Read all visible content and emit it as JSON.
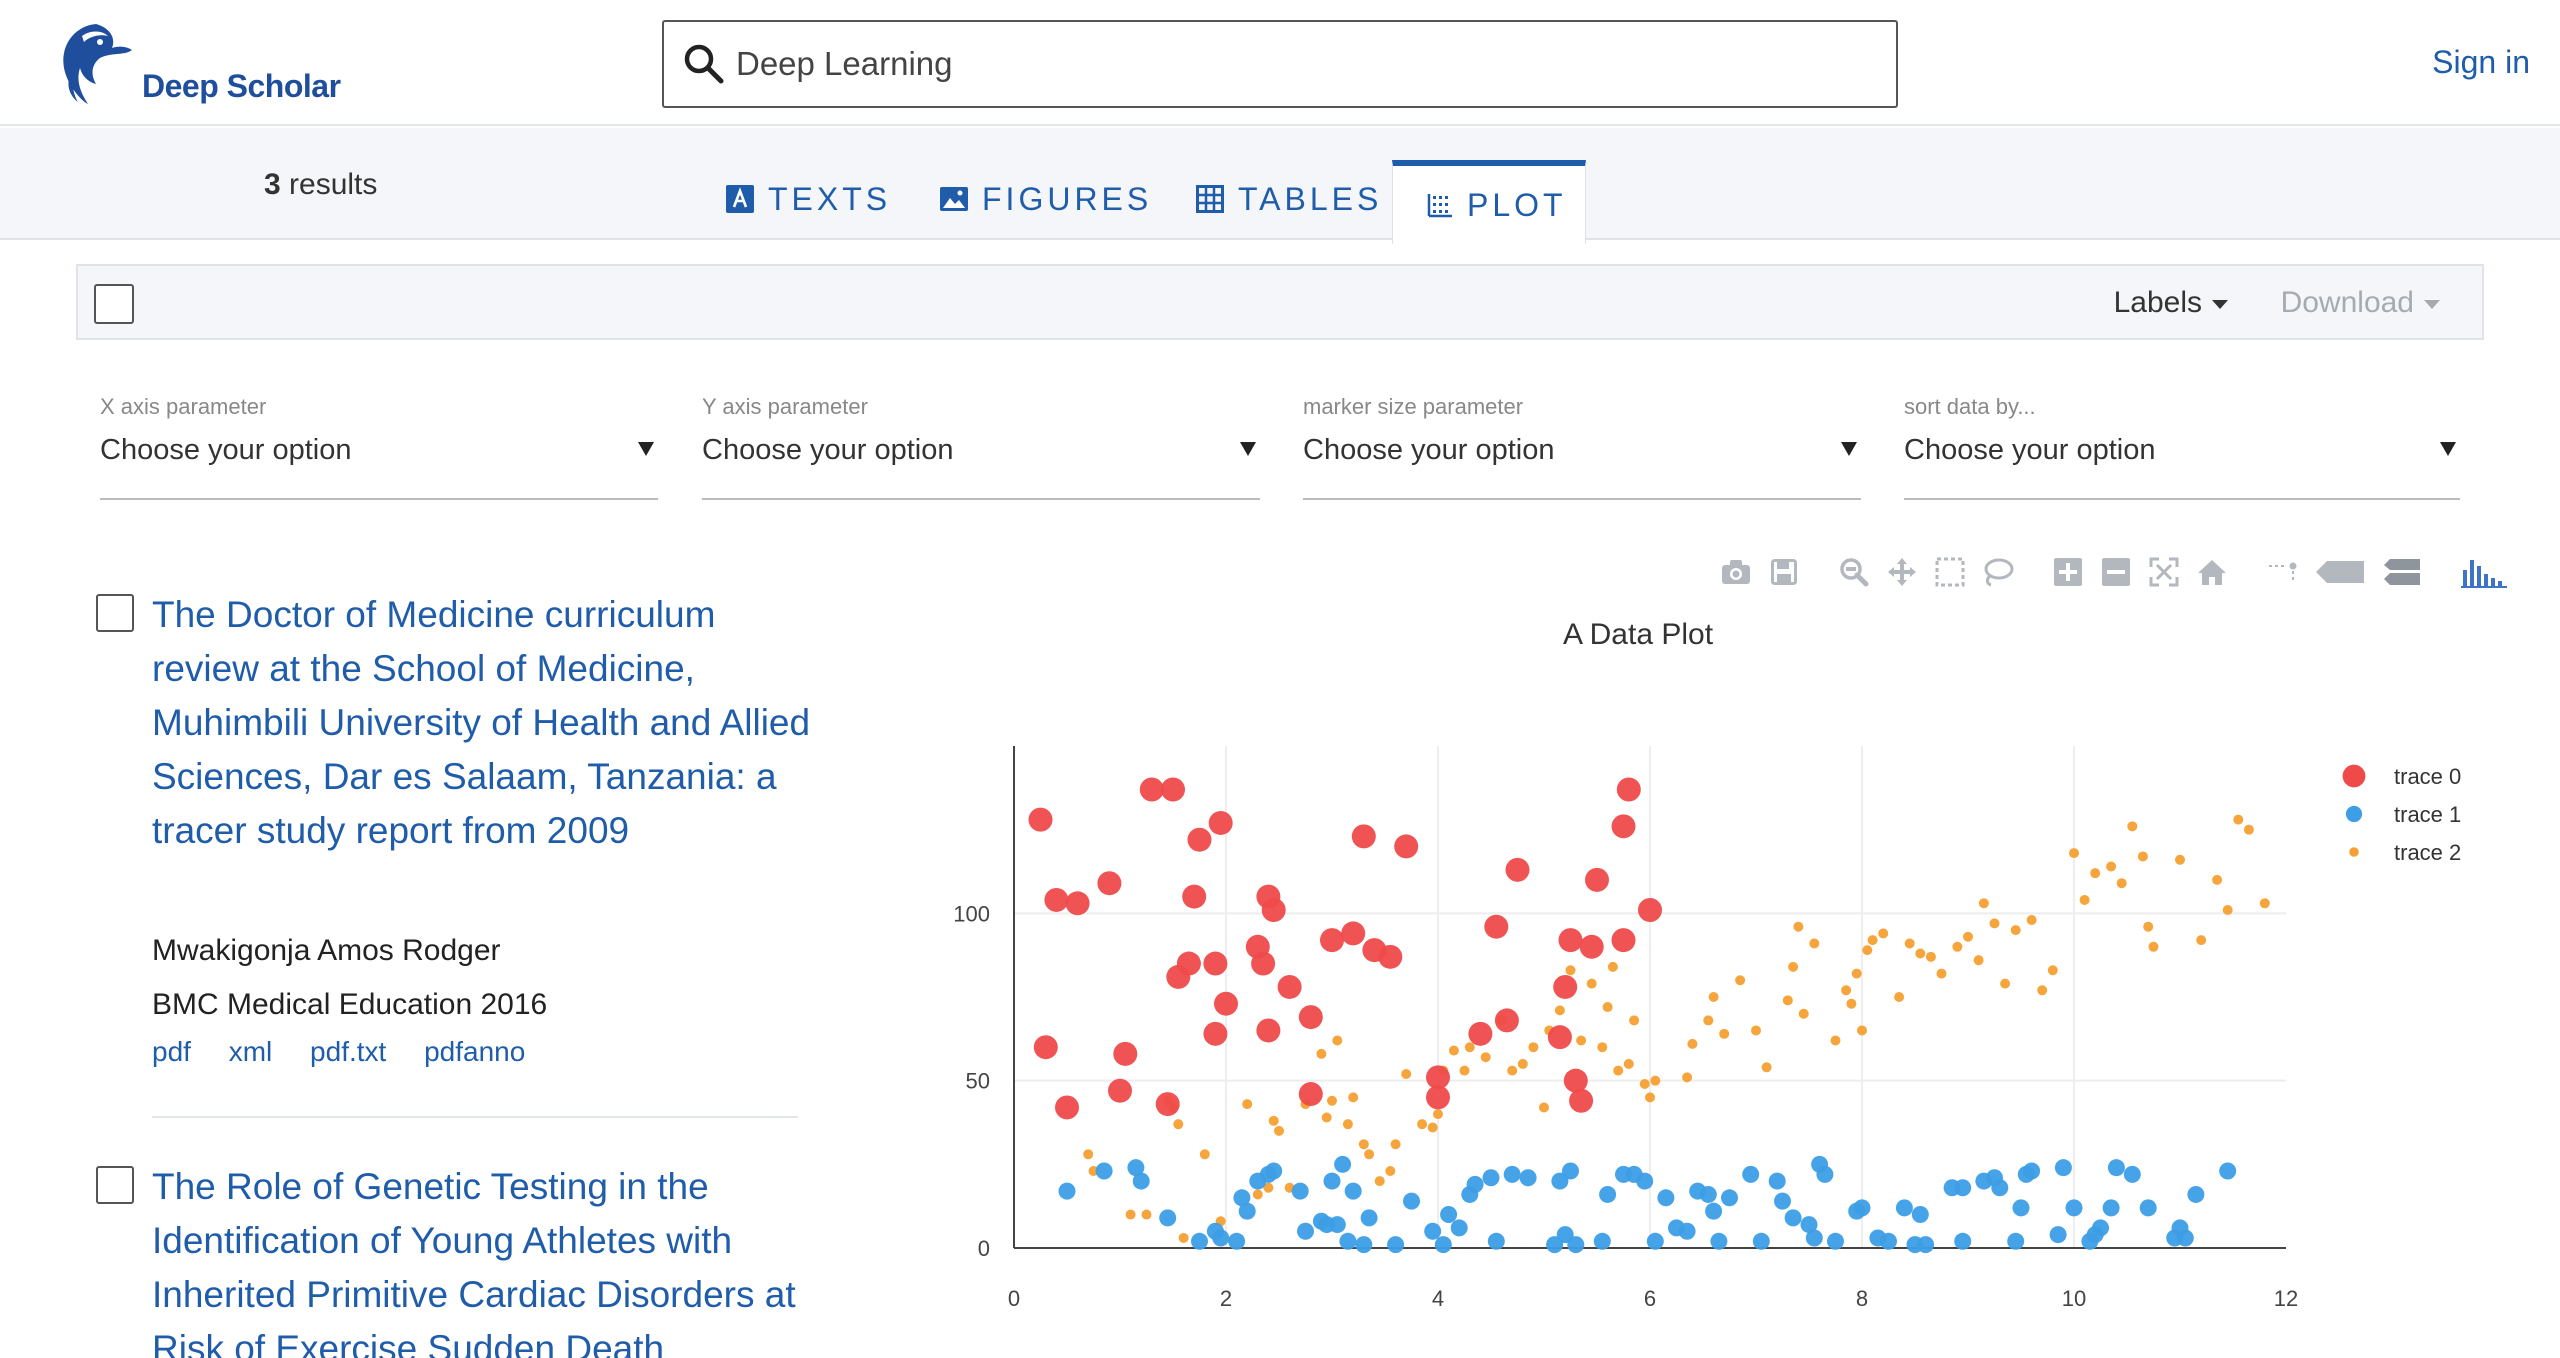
{
  "header": {
    "brand": "Deep Scholar",
    "search_value": "Deep Learning",
    "sign_in": "Sign in"
  },
  "tabs": {
    "result_count": "3",
    "result_label": "results",
    "items": [
      {
        "label": "TEXTS",
        "active": false
      },
      {
        "label": "FIGURES",
        "active": false
      },
      {
        "label": "TABLES",
        "active": false
      },
      {
        "label": "PLOT",
        "active": true
      }
    ]
  },
  "toolbar": {
    "labels": "Labels",
    "download": "Download"
  },
  "selectors": [
    {
      "label": "X axis parameter",
      "value": "Choose your option"
    },
    {
      "label": "Y axis parameter",
      "value": "Choose your option"
    },
    {
      "label": "marker size parameter",
      "value": "Choose your option"
    },
    {
      "label": "sort data by...",
      "value": "Choose your option"
    }
  ],
  "results": [
    {
      "title": "The Doctor of Medicine curriculum review at the School of Medicine, Muhimbili University of Health and Allied Sciences, Dar es Salaam, Tanzania: a tracer study report from 2009",
      "author": "Mwakigonja Amos Rodger",
      "venue": "BMC Medical Education 2016",
      "links": [
        "pdf",
        "xml",
        "pdf.txt",
        "pdfanno"
      ]
    },
    {
      "title": "The Role of Genetic Testing in the Identification of Young Athletes with Inherited Primitive Cardiac Disorders at Risk of Exercise Sudden Death"
    }
  ],
  "colors": {
    "accent": "#1f5ca9",
    "brand": "#1f4e9c",
    "trace0": "#ef4a4a",
    "trace1": "#3d9ee6",
    "trace2": "#f5a033"
  },
  "modebar_icons": [
    "camera-icon",
    "save-icon",
    "zoom-icon",
    "pan-icon",
    "box-select-icon",
    "lasso-icon",
    "zoom-in-icon",
    "zoom-out-icon",
    "autoscale-icon",
    "reset-axes-icon",
    "spike-lines-icon",
    "hover-closest-icon",
    "hover-compare-icon",
    "plotly-logo-icon"
  ],
  "chart_data": {
    "type": "scatter",
    "title": "A Data Plot",
    "xlim": [
      0,
      12
    ],
    "ylim": [
      0,
      150
    ],
    "x_ticks": [
      "0",
      "2",
      "4",
      "6",
      "8",
      "10",
      "12"
    ],
    "y_ticks": [
      "0",
      "50",
      "100"
    ],
    "grid": true,
    "legend_position": "top-right",
    "series": [
      {
        "name": "trace 0",
        "marker": "large",
        "points": [
          [
            0.25,
            128
          ],
          [
            0.3,
            60
          ],
          [
            0.4,
            104
          ],
          [
            0.5,
            42
          ],
          [
            0.6,
            103
          ],
          [
            0.9,
            109
          ],
          [
            1.0,
            47
          ],
          [
            1.05,
            58
          ],
          [
            1.3,
            137
          ],
          [
            1.45,
            43
          ],
          [
            1.5,
            137
          ],
          [
            1.55,
            81
          ],
          [
            1.65,
            85
          ],
          [
            1.7,
            105
          ],
          [
            1.75,
            122
          ],
          [
            1.9,
            64
          ],
          [
            1.9,
            85
          ],
          [
            1.95,
            127
          ],
          [
            2.0,
            73
          ],
          [
            2.3,
            90
          ],
          [
            2.35,
            85
          ],
          [
            2.4,
            105
          ],
          [
            2.4,
            65
          ],
          [
            2.45,
            101
          ],
          [
            2.6,
            78
          ],
          [
            2.8,
            69
          ],
          [
            2.8,
            46
          ],
          [
            3.0,
            92
          ],
          [
            3.2,
            94
          ],
          [
            3.3,
            123
          ],
          [
            3.4,
            89
          ],
          [
            3.55,
            87
          ],
          [
            3.7,
            120
          ],
          [
            4.0,
            45
          ],
          [
            4.0,
            51
          ],
          [
            4.4,
            64
          ],
          [
            4.55,
            96
          ],
          [
            4.65,
            68
          ],
          [
            4.75,
            113
          ],
          [
            5.15,
            63
          ],
          [
            5.2,
            78
          ],
          [
            5.25,
            92
          ],
          [
            5.3,
            50
          ],
          [
            5.35,
            44
          ],
          [
            5.45,
            90
          ],
          [
            5.5,
            110
          ],
          [
            5.75,
            92
          ],
          [
            5.75,
            126
          ],
          [
            5.8,
            137
          ],
          [
            6.0,
            101
          ]
        ]
      },
      {
        "name": "trace 1",
        "marker": "medium",
        "points": [
          [
            0.5,
            17
          ],
          [
            0.85,
            23
          ],
          [
            1.15,
            24
          ],
          [
            1.2,
            20
          ],
          [
            1.45,
            9
          ],
          [
            1.75,
            2
          ],
          [
            1.9,
            5
          ],
          [
            1.95,
            3
          ],
          [
            2.1,
            2
          ],
          [
            2.15,
            15
          ],
          [
            2.2,
            11
          ],
          [
            2.3,
            20
          ],
          [
            2.4,
            22
          ],
          [
            2.45,
            23
          ],
          [
            2.7,
            17
          ],
          [
            2.75,
            5
          ],
          [
            2.9,
            8
          ],
          [
            2.95,
            7
          ],
          [
            3.0,
            20
          ],
          [
            3.05,
            7
          ],
          [
            3.1,
            25
          ],
          [
            3.15,
            2
          ],
          [
            3.2,
            17
          ],
          [
            3.3,
            1
          ],
          [
            3.35,
            9
          ],
          [
            3.6,
            1
          ],
          [
            3.75,
            14
          ],
          [
            3.95,
            5
          ],
          [
            4.05,
            1
          ],
          [
            4.1,
            10
          ],
          [
            4.2,
            6
          ],
          [
            4.3,
            16
          ],
          [
            4.35,
            19
          ],
          [
            4.5,
            21
          ],
          [
            4.55,
            2
          ],
          [
            4.7,
            22
          ],
          [
            4.85,
            21
          ],
          [
            5.1,
            1
          ],
          [
            5.15,
            20
          ],
          [
            5.2,
            4
          ],
          [
            5.25,
            23
          ],
          [
            5.3,
            1
          ],
          [
            5.55,
            2
          ],
          [
            5.6,
            16
          ],
          [
            5.75,
            22
          ],
          [
            5.85,
            22
          ],
          [
            5.95,
            20
          ],
          [
            6.05,
            2
          ],
          [
            6.15,
            15
          ],
          [
            6.25,
            6
          ],
          [
            6.35,
            5
          ],
          [
            6.45,
            17
          ],
          [
            6.55,
            16
          ],
          [
            6.6,
            11
          ],
          [
            6.65,
            2
          ],
          [
            6.75,
            15
          ],
          [
            6.95,
            22
          ],
          [
            7.05,
            2
          ],
          [
            7.2,
            20
          ],
          [
            7.25,
            14
          ],
          [
            7.35,
            9
          ],
          [
            7.5,
            7
          ],
          [
            7.55,
            3
          ],
          [
            7.6,
            25
          ],
          [
            7.65,
            22
          ],
          [
            7.75,
            2
          ],
          [
            7.95,
            11
          ],
          [
            8.0,
            12
          ],
          [
            8.15,
            3
          ],
          [
            8.25,
            2
          ],
          [
            8.4,
            12
          ],
          [
            8.5,
            1
          ],
          [
            8.55,
            10
          ],
          [
            8.6,
            1
          ],
          [
            8.85,
            18
          ],
          [
            8.95,
            2
          ],
          [
            8.95,
            18
          ],
          [
            9.15,
            20
          ],
          [
            9.25,
            21
          ],
          [
            9.3,
            18
          ],
          [
            9.45,
            2
          ],
          [
            9.5,
            12
          ],
          [
            9.55,
            22
          ],
          [
            9.6,
            23
          ],
          [
            9.85,
            4
          ],
          [
            9.9,
            24
          ],
          [
            10.0,
            12
          ],
          [
            10.15,
            2
          ],
          [
            10.2,
            4
          ],
          [
            10.25,
            6
          ],
          [
            10.35,
            12
          ],
          [
            10.4,
            24
          ],
          [
            10.55,
            22
          ],
          [
            10.7,
            12
          ],
          [
            10.95,
            3
          ],
          [
            11.0,
            6
          ],
          [
            11.05,
            3
          ],
          [
            11.15,
            16
          ],
          [
            11.45,
            23
          ]
        ]
      },
      {
        "name": "trace 2",
        "marker": "small",
        "points": [
          [
            0.7,
            28
          ],
          [
            0.75,
            23
          ],
          [
            1.1,
            10
          ],
          [
            1.25,
            10
          ],
          [
            1.45,
            44
          ],
          [
            1.5,
            42
          ],
          [
            1.55,
            37
          ],
          [
            1.6,
            3
          ],
          [
            1.8,
            28
          ],
          [
            1.95,
            8
          ],
          [
            2.2,
            43
          ],
          [
            2.3,
            16
          ],
          [
            2.4,
            18
          ],
          [
            2.45,
            38
          ],
          [
            2.5,
            35
          ],
          [
            2.6,
            18
          ],
          [
            2.75,
            43
          ],
          [
            2.9,
            58
          ],
          [
            2.95,
            39
          ],
          [
            3.0,
            44
          ],
          [
            3.05,
            62
          ],
          [
            3.15,
            37
          ],
          [
            3.2,
            45
          ],
          [
            3.3,
            31
          ],
          [
            3.35,
            28
          ],
          [
            3.45,
            20
          ],
          [
            3.55,
            23
          ],
          [
            3.6,
            31
          ],
          [
            3.7,
            52
          ],
          [
            3.85,
            37
          ],
          [
            3.95,
            36
          ],
          [
            4.0,
            40
          ],
          [
            4.05,
            53
          ],
          [
            4.15,
            59
          ],
          [
            4.25,
            53
          ],
          [
            4.3,
            60
          ],
          [
            4.45,
            57
          ],
          [
            4.6,
            68
          ],
          [
            4.7,
            53
          ],
          [
            4.8,
            55
          ],
          [
            4.9,
            60
          ],
          [
            5.0,
            42
          ],
          [
            5.05,
            65
          ],
          [
            5.15,
            71
          ],
          [
            5.25,
            83
          ],
          [
            5.35,
            62
          ],
          [
            5.45,
            79
          ],
          [
            5.55,
            60
          ],
          [
            5.6,
            72
          ],
          [
            5.65,
            84
          ],
          [
            5.7,
            53
          ],
          [
            5.8,
            55
          ],
          [
            5.85,
            68
          ],
          [
            5.95,
            49
          ],
          [
            6.0,
            45
          ],
          [
            6.05,
            50
          ],
          [
            6.35,
            51
          ],
          [
            6.4,
            61
          ],
          [
            6.55,
            68
          ],
          [
            6.6,
            75
          ],
          [
            6.7,
            64
          ],
          [
            6.85,
            80
          ],
          [
            7.0,
            65
          ],
          [
            7.1,
            54
          ],
          [
            7.3,
            74
          ],
          [
            7.35,
            84
          ],
          [
            7.4,
            96
          ],
          [
            7.45,
            70
          ],
          [
            7.55,
            91
          ],
          [
            7.75,
            62
          ],
          [
            7.85,
            77
          ],
          [
            7.9,
            73
          ],
          [
            7.95,
            82
          ],
          [
            8.0,
            65
          ],
          [
            8.05,
            89
          ],
          [
            8.1,
            92
          ],
          [
            8.2,
            94
          ],
          [
            8.35,
            75
          ],
          [
            8.45,
            91
          ],
          [
            8.55,
            88
          ],
          [
            8.65,
            87
          ],
          [
            8.75,
            82
          ],
          [
            8.9,
            90
          ],
          [
            9.0,
            93
          ],
          [
            9.1,
            86
          ],
          [
            9.15,
            103
          ],
          [
            9.25,
            97
          ],
          [
            9.35,
            79
          ],
          [
            9.45,
            95
          ],
          [
            9.6,
            98
          ],
          [
            9.7,
            77
          ],
          [
            9.8,
            83
          ],
          [
            10.0,
            118
          ],
          [
            10.1,
            104
          ],
          [
            10.2,
            112
          ],
          [
            10.35,
            114
          ],
          [
            10.45,
            109
          ],
          [
            10.55,
            126
          ],
          [
            10.65,
            117
          ],
          [
            10.7,
            96
          ],
          [
            10.75,
            90
          ],
          [
            11.0,
            116
          ],
          [
            11.2,
            92
          ],
          [
            11.35,
            110
          ],
          [
            11.45,
            101
          ],
          [
            11.55,
            128
          ],
          [
            11.65,
            125
          ],
          [
            11.8,
            103
          ]
        ]
      }
    ]
  }
}
